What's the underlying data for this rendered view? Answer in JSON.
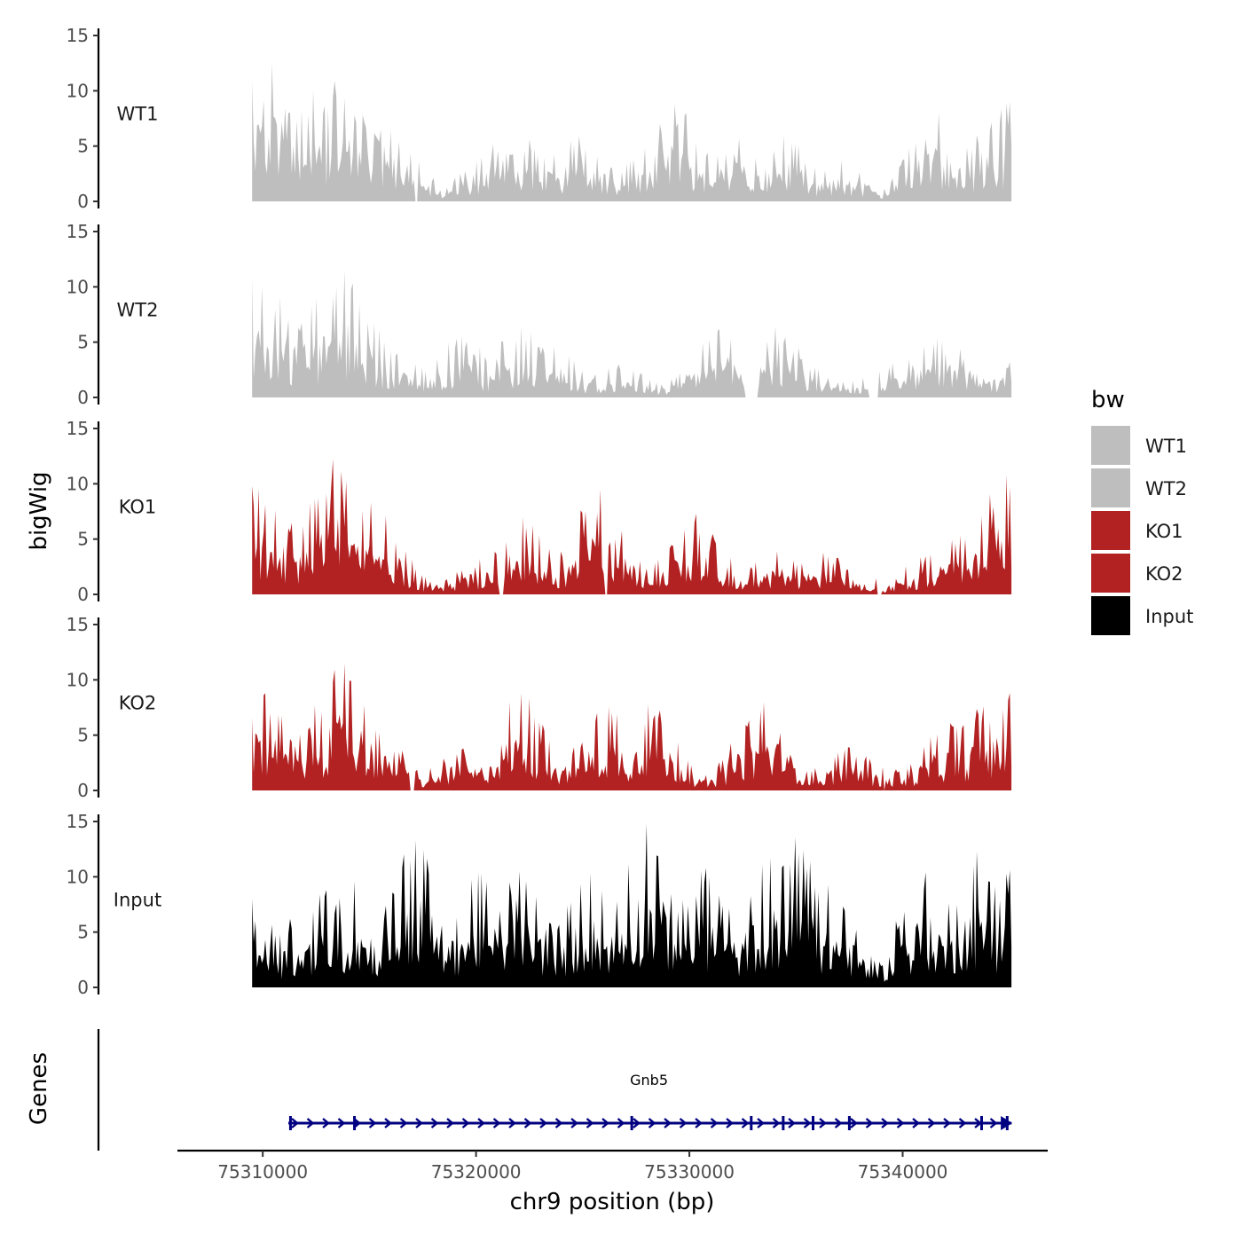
{
  "chart_data": {
    "type": "area",
    "chromosome": "chr9",
    "ylabel": "bigWig",
    "xlabel": "chr9 position (bp)",
    "gene_track_label": "Genes",
    "xlim": [
      75306000,
      75346800
    ],
    "data_range": [
      75309500,
      75345100
    ],
    "x_ticks": [
      75310000,
      75320000,
      75330000,
      75340000
    ],
    "x_tick_labels": [
      "75310000",
      "75320000",
      "75330000",
      "75340000"
    ],
    "ylim": [
      0,
      15
    ],
    "y_ticks": [
      0,
      5,
      10,
      15
    ],
    "y_tick_labels": [
      "0",
      "5",
      "10",
      "15"
    ],
    "legend": {
      "title": "bw",
      "entries": [
        {
          "label": "WT1",
          "color": "#bebebe"
        },
        {
          "label": "WT2",
          "color": "#bebebe"
        },
        {
          "label": "KO1",
          "color": "#b22222"
        },
        {
          "label": "KO2",
          "color": "#b22222"
        },
        {
          "label": "Input",
          "color": "#000000"
        }
      ]
    },
    "tracks": [
      {
        "name": "WT1",
        "color": "#bebebe",
        "peaks": [
          [
            75309500,
            10.8
          ],
          [
            75310400,
            12.5
          ],
          [
            75311200,
            8.0
          ],
          [
            75312400,
            10.0
          ],
          [
            75313400,
            10.9
          ],
          [
            75314700,
            7.8
          ],
          [
            75316000,
            6.4
          ],
          [
            75320800,
            5.2
          ],
          [
            75322500,
            5.6
          ],
          [
            75324800,
            5.9
          ],
          [
            75328600,
            7.0
          ],
          [
            75329300,
            8.8
          ],
          [
            75332300,
            5.7
          ],
          [
            75334400,
            6.0
          ],
          [
            75337100,
            3.7
          ],
          [
            75341700,
            8.0
          ],
          [
            75343500,
            6.0
          ],
          [
            75345000,
            9.0
          ]
        ],
        "gaps": [
          [
            75317100,
            75317300
          ]
        ]
      },
      {
        "name": "WT2",
        "color": "#bebebe",
        "peaks": [
          [
            75309500,
            10.8
          ],
          [
            75310800,
            9.1
          ],
          [
            75312500,
            9.0
          ],
          [
            75313300,
            9.1
          ],
          [
            75313800,
            11.5
          ],
          [
            75314900,
            6.8
          ],
          [
            75316300,
            4.0
          ],
          [
            75319300,
            5.6
          ],
          [
            75322100,
            6.4
          ],
          [
            75323700,
            4.6
          ],
          [
            75326700,
            3.0
          ],
          [
            75331400,
            6.2
          ],
          [
            75334000,
            6.4
          ],
          [
            75335200,
            3.4
          ],
          [
            75339500,
            3.1
          ],
          [
            75341600,
            5.4
          ],
          [
            75342700,
            4.4
          ],
          [
            75345000,
            3.2
          ]
        ],
        "gaps": [
          [
            75332600,
            75333200
          ],
          [
            75338400,
            75338900
          ]
        ]
      },
      {
        "name": "KO1",
        "color": "#b22222",
        "peaks": [
          [
            75309500,
            9.8
          ],
          [
            75310600,
            7.6
          ],
          [
            75312200,
            8.3
          ],
          [
            75313300,
            12.2
          ],
          [
            75315100,
            8.3
          ],
          [
            75316300,
            2.1
          ],
          [
            75320200,
            3.2
          ],
          [
            75322200,
            7.0
          ],
          [
            75325800,
            9.5
          ],
          [
            75330300,
            7.3
          ],
          [
            75334100,
            3.9
          ],
          [
            75336300,
            3.8
          ],
          [
            75339700,
            1.4
          ],
          [
            75341300,
            3.6
          ],
          [
            75342700,
            5.3
          ],
          [
            75344900,
            10.8
          ]
        ],
        "gaps": [
          [
            75321100,
            75321300
          ],
          [
            75326000,
            75326200
          ],
          [
            75338800,
            75339000
          ]
        ]
      },
      {
        "name": "KO2",
        "color": "#b22222",
        "peaks": [
          [
            75309500,
            6.6
          ],
          [
            75310100,
            8.8
          ],
          [
            75312100,
            5.5
          ],
          [
            75313300,
            9.8
          ],
          [
            75313800,
            11.5
          ],
          [
            75315300,
            5.5
          ],
          [
            75319400,
            3.8
          ],
          [
            75322100,
            8.8
          ],
          [
            75326200,
            7.6
          ],
          [
            75328100,
            7.8
          ],
          [
            75333500,
            8.0
          ],
          [
            75337400,
            3.9
          ],
          [
            75339100,
            2.1
          ],
          [
            75342200,
            6.1
          ],
          [
            75343800,
            7.6
          ],
          [
            75345000,
            8.8
          ]
        ],
        "gaps": [
          [
            75316900,
            75317100
          ],
          [
            75339000,
            75339200
          ]
        ]
      },
      {
        "name": "Input",
        "color": "#000000",
        "peaks": [
          [
            75309500,
            8.0
          ],
          [
            75311300,
            6.2
          ],
          [
            75313000,
            8.8
          ],
          [
            75314300,
            9.6
          ],
          [
            75317200,
            13.3
          ],
          [
            75320100,
            10.4
          ],
          [
            75322000,
            10.5
          ],
          [
            75325400,
            10.3
          ],
          [
            75328000,
            14.8
          ],
          [
            75330800,
            10.8
          ],
          [
            75333800,
            11.7
          ],
          [
            75335000,
            13.6
          ],
          [
            75336500,
            9.3
          ],
          [
            75338800,
            0.8
          ],
          [
            75341100,
            10.4
          ],
          [
            75343500,
            12.3
          ],
          [
            75345000,
            10.6
          ]
        ],
        "gaps": []
      }
    ],
    "gene": {
      "name": "Gnb5",
      "strand": "+",
      "start": 75311200,
      "end": 75345100,
      "color": "#000080",
      "exons": [
        75311300,
        75314300,
        75327300,
        75332900,
        75334400,
        75335800,
        75337500,
        75343700,
        75344900
      ]
    }
  }
}
